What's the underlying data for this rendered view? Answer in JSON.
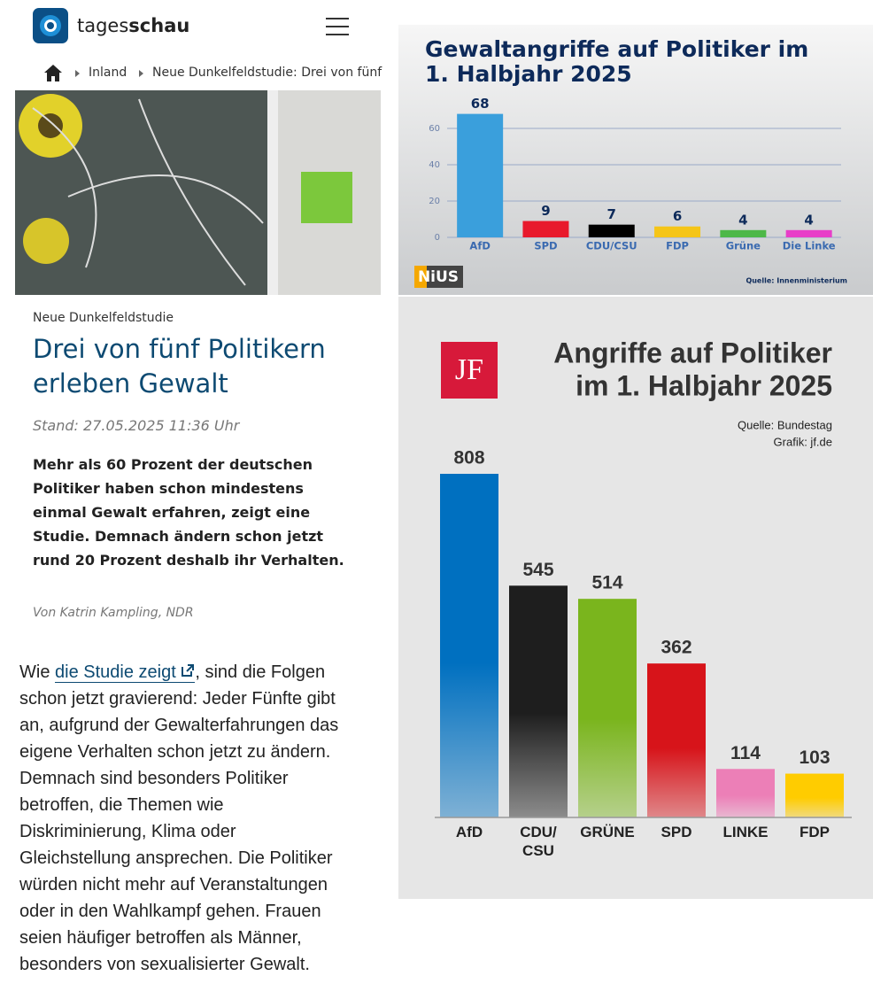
{
  "header": {
    "brand_light": "tages",
    "brand_bold": "schau"
  },
  "breadcrumb": [
    "Inland",
    "Neue Dunkelfeldstudie: Drei von fünf"
  ],
  "article": {
    "kicker": "Neue Dunkelfeldstudie",
    "title": [
      "Drei von fünf Politikern",
      "erleben Gewalt"
    ],
    "stand": "Stand: 27.05.2025 11:36 Uhr",
    "teaser": [
      "Mehr als 60 Prozent der deutschen",
      "Politiker haben schon mindestens",
      "einmal Gewalt erfahren, zeigt eine",
      "Studie. Demnach ändern schon jetzt",
      "rund 20 Prozent deshalb ihr Verhalten."
    ],
    "author": "Von Katrin Kampling, NDR",
    "body": {
      "intro": "Wie ",
      "link": "die Studie zeigt",
      "intro_rest": ", sind die Folgen",
      "lines": [
        "schon jetzt gravierend: Jeder Fünfte gibt",
        "an, aufgrund der Gewalterfahrungen das",
        "eigene Verhalten schon jetzt zu ändern.",
        "Demnach sind besonders Politiker",
        "betroffen, die Themen wie",
        "Diskriminierung, Klima oder",
        "Gleichstellung ansprechen. Die Politiker",
        "würden nicht mehr auf Veranstaltungen",
        "oder in den Wahlkampf gehen. Frauen",
        "seien häufiger betroffen als Männer,",
        "besonders von sexualisierter Gewalt."
      ]
    }
  },
  "chart_data": [
    {
      "type": "bar",
      "title": [
        "Gewaltangriffe auf Politiker im",
        "1. Halbjahr 2025"
      ],
      "categories": [
        "AfD",
        "SPD",
        "CDU/CSU",
        "FDP",
        "Grüne",
        "Die Linke"
      ],
      "values": [
        68,
        9,
        7,
        6,
        4,
        4
      ],
      "colors": [
        "#3a9fdc",
        "#e8192c",
        "#000000",
        "#f5c518",
        "#4db848",
        "#e83ec8"
      ],
      "ylim": [
        0,
        70
      ],
      "yticks": [
        0,
        20,
        40,
        60
      ],
      "grid": true,
      "logo": "NiUS",
      "source": "Quelle: Innenministerium"
    },
    {
      "type": "bar",
      "title": [
        "Angriffe auf Politiker",
        "im 1. Halbjahr 2025"
      ],
      "categories": [
        "AfD",
        "CDU/\nCSU",
        "GRÜNE",
        "SPD",
        "LINKE",
        "FDP"
      ],
      "values": [
        808,
        545,
        514,
        362,
        114,
        103
      ],
      "colors": [
        "#0070c0",
        "#1e1e1e",
        "#7ab51d",
        "#d7141a",
        "#ec7fb7",
        "#ffcc00"
      ],
      "logo": "JF",
      "source": [
        "Quelle: Bundestag",
        "Grafik: jf.de"
      ]
    }
  ]
}
